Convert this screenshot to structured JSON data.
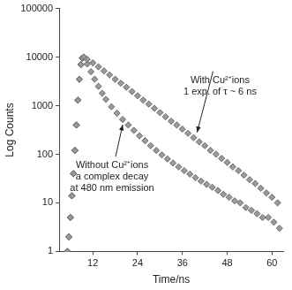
{
  "chart_data": {
    "type": "scatter",
    "x_label": "Time/ns",
    "y_label": "Log Counts",
    "log": "y",
    "grid": false,
    "xlim": [
      3,
      63
    ],
    "xticks": [
      12,
      24,
      36,
      48,
      60
    ],
    "ylim": [
      1,
      100000
    ],
    "yticks": [
      1,
      10,
      100,
      1000,
      10000,
      100000
    ],
    "series": [
      {
        "color": "#9a9a9a",
        "marker": "diamond",
        "x": [
          5.2,
          5.6,
          6.0,
          6.4,
          6.8,
          7.2,
          7.6,
          8.0,
          8.4,
          8.8,
          9.2,
          9.6,
          10.5,
          12,
          13.5,
          15,
          16.5,
          18,
          19.5,
          21,
          22.5,
          24,
          25.5,
          27,
          28.5,
          30,
          31.5,
          33,
          34.5,
          36,
          37.5,
          39,
          40.5,
          42,
          43.5,
          45,
          46.5,
          48,
          49.5,
          51,
          52.5,
          54,
          55.5,
          57,
          58.5,
          60,
          61.5
        ],
        "values": [
          1,
          2,
          5,
          14,
          40,
          120,
          400,
          1300,
          3500,
          7000,
          9500,
          10000,
          9000,
          7600,
          6300,
          5200,
          4300,
          3500,
          2900,
          2400,
          1950,
          1600,
          1300,
          1080,
          880,
          720,
          590,
          480,
          400,
          330,
          270,
          220,
          180,
          150,
          120,
          100,
          82,
          68,
          55,
          46,
          37,
          30,
          25,
          20,
          16,
          13,
          10
        ]
      },
      {
        "color": "#9a9a9a",
        "marker": "diamond",
        "x": [
          5.2,
          5.6,
          6.0,
          6.4,
          6.8,
          7.2,
          7.6,
          8.0,
          8.4,
          8.8,
          9.2,
          9.6,
          10.5,
          11.5,
          12.5,
          13.5,
          14.5,
          15.5,
          17,
          18.5,
          20,
          21.5,
          23,
          24.5,
          26,
          27.5,
          29,
          30.5,
          32,
          33.5,
          35,
          36.5,
          38,
          39.5,
          41,
          42.5,
          44,
          45.5,
          47,
          48.5,
          50,
          51.5,
          53,
          54.5,
          56,
          57.5,
          59,
          60.5,
          62
        ],
        "values": [
          1,
          2,
          5,
          14,
          40,
          120,
          400,
          1300,
          3500,
          7000,
          9500,
          10000,
          7200,
          5000,
          3500,
          2500,
          1800,
          1350,
          950,
          700,
          520,
          400,
          310,
          240,
          190,
          150,
          120,
          97,
          80,
          66,
          55,
          46,
          39,
          33,
          28,
          24,
          21,
          18,
          15,
          13,
          11,
          10,
          8,
          7,
          6,
          5,
          5,
          4,
          3
        ]
      }
    ],
    "annotations": [
      {
        "text": [
          "With Cu²⁺ions",
          "1 exp. of τ ~ 6 ns"
        ]
      },
      {
        "text": [
          "Without Cu²⁺ions",
          "a complex decay",
          "at 480 nm emission"
        ]
      }
    ]
  }
}
